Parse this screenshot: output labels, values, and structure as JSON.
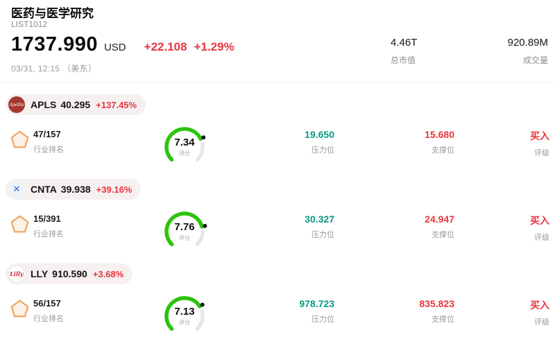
{
  "colors": {
    "red": "#e8353f",
    "teal": "#089981",
    "gauge_green": "#2cc40c",
    "gauge_track": "#e4e4ea",
    "gauge_dot": "#15161a"
  },
  "header": {
    "title": "医药与医学研究",
    "subtitle": "LIST1012",
    "price": "1737.990",
    "currency": "USD",
    "change": "+22.108",
    "change_pct": "+1.29%",
    "timestamp": "03/31, 12:15 （美东）",
    "stats": [
      {
        "value": "4.46T",
        "label": "总市值"
      },
      {
        "value": "920.89M",
        "label": "成交量"
      }
    ]
  },
  "stocks": [
    {
      "symbol": "APLS",
      "price": "40.295",
      "change_pct": "+137.45%",
      "logo": {
        "glyph": "Apellis"
      },
      "rank": "47/157",
      "rank_label": "行业排名",
      "score": "7.34",
      "score_label": "评分",
      "resistance": "19.650",
      "resistance_label": "压力位",
      "support": "15.680",
      "support_label": "支撑位",
      "rating": "买入",
      "rating_label": "评级"
    },
    {
      "symbol": "CNTA",
      "price": "39.938",
      "change_pct": "+39.16%",
      "logo": {
        "glyph": "✕"
      },
      "rank": "15/391",
      "rank_label": "行业排名",
      "score": "7.76",
      "score_label": "评分",
      "resistance": "30.327",
      "resistance_label": "压力位",
      "support": "24.947",
      "support_label": "支撑位",
      "rating": "买入",
      "rating_label": "评级"
    },
    {
      "symbol": "LLY",
      "price": "910.590",
      "change_pct": "+3.68%",
      "logo": {
        "glyph": "Lilly"
      },
      "rank": "56/157",
      "rank_label": "行业排名",
      "score": "7.13",
      "score_label": "评分",
      "resistance": "978.723",
      "resistance_label": "压力位",
      "support": "835.823",
      "support_label": "支撑位",
      "rating": "买入",
      "rating_label": "评级"
    }
  ]
}
